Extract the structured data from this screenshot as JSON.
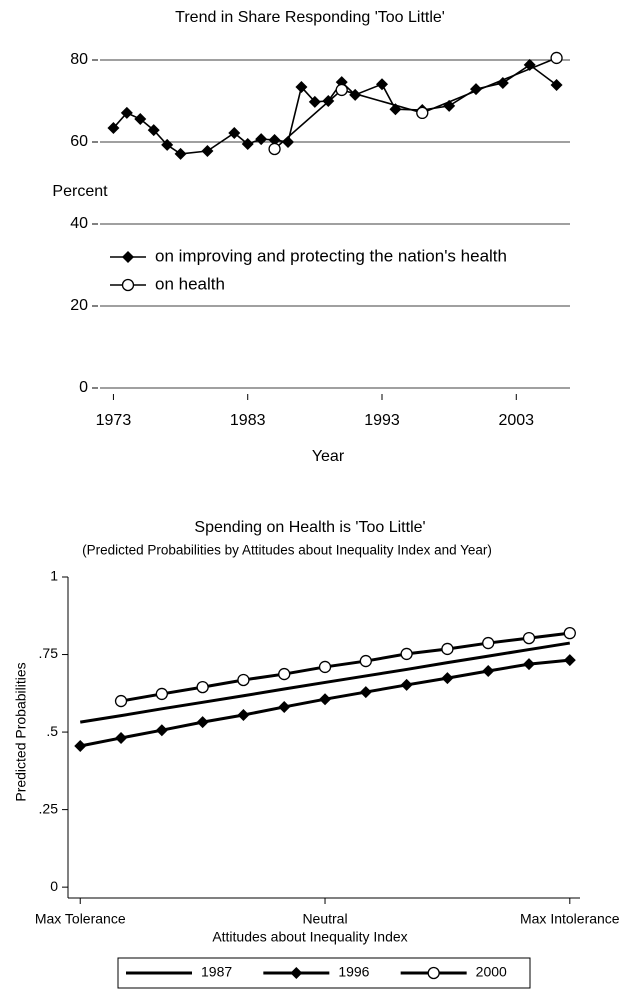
{
  "chart_data": [
    {
      "type": "line",
      "title": "Trend in Share Responding 'Too Little'",
      "ylabel": "Percent",
      "xlabel": "Year",
      "xlim": [
        1972,
        2007
      ],
      "xticks": [
        1973,
        1983,
        1993,
        2003
      ],
      "ylim": [
        0,
        82.5
      ],
      "yticks": [
        0,
        20,
        40,
        60,
        80
      ],
      "grid": true,
      "legend": "left",
      "series": [
        {
          "name": "on improving and protecting the nation's health",
          "color": "#000000",
          "marker": "diamond",
          "x": [
            1973,
            1974,
            1975,
            1976,
            1977,
            1978,
            1980,
            1982,
            1983,
            1984,
            1985,
            1986,
            1987,
            1988,
            1989,
            1990,
            1991,
            1993,
            1994,
            1996,
            1998,
            2000,
            2002,
            2004,
            2006
          ],
          "values": [
            63.4,
            67.1,
            65.6,
            62.9,
            59.3,
            57.1,
            57.8,
            62.2,
            59.5,
            60.7,
            60.5,
            60.0,
            73.4,
            69.8,
            70.0,
            74.6,
            71.5,
            74.1,
            68.0,
            67.8,
            68.8,
            72.9,
            74.4,
            78.8,
            73.9
          ]
        },
        {
          "name": "on health",
          "color": "#000000",
          "marker": "circle",
          "x": [
            1985,
            1990,
            1996,
            2006
          ],
          "values": [
            58.3,
            72.7,
            67.1,
            80.5
          ]
        }
      ]
    },
    {
      "type": "line",
      "title": "Spending on Health is 'Too Little'",
      "subtitle": "(Predicted Probabilities by Attitudes about Inequality Index and Year)",
      "ylabel": "Predicted Probabilities",
      "xlabel": "Attitudes about Inequality Index",
      "xlim": [
        -0.3,
        12.25
      ],
      "xticks": [
        {
          "value": 0,
          "label": "Max Tolerance"
        },
        {
          "value": 6,
          "label": "Neutral"
        },
        {
          "value": 12,
          "label": "Max Intolerance"
        }
      ],
      "ylim": [
        -0.035,
        1
      ],
      "yticks": [
        0,
        {
          "value": 0.25,
          "label": ".25"
        },
        {
          "value": 0.5,
          "label": ".5"
        },
        {
          "value": 0.75,
          "label": ".75"
        },
        1
      ],
      "grid": false,
      "legend": "bottom",
      "x": [
        0,
        1,
        2,
        3,
        4,
        5,
        6,
        7,
        8,
        9,
        10,
        11,
        12
      ],
      "series": [
        {
          "name": "1987",
          "color": "#000000",
          "marker": "none",
          "values": [
            0.532,
            0.553,
            0.575,
            0.596,
            0.617,
            0.639,
            0.66,
            0.681,
            0.702,
            0.724,
            0.745,
            0.766,
            0.787
          ]
        },
        {
          "name": "1996",
          "color": "#000000",
          "marker": "diamond",
          "values": [
            0.455,
            0.481,
            0.506,
            0.532,
            0.555,
            0.581,
            0.606,
            0.629,
            0.652,
            0.674,
            0.697,
            0.719,
            0.732
          ]
        },
        {
          "name": "2000",
          "color": "#000000",
          "marker": "circle",
          "values": [
            null,
            0.6,
            0.623,
            0.645,
            0.668,
            0.687,
            0.71,
            0.729,
            0.752,
            0.768,
            0.787,
            0.803,
            0.819
          ]
        }
      ]
    }
  ]
}
